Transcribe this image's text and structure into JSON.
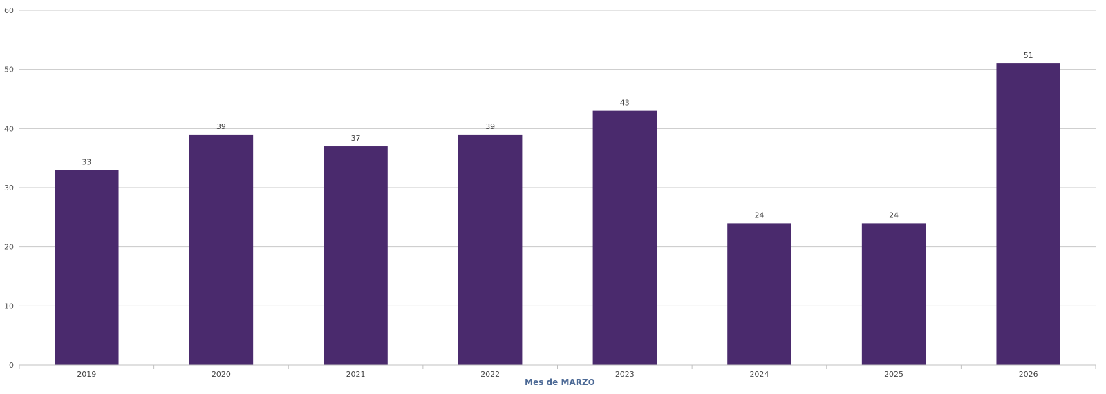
{
  "chart_data": {
    "type": "bar",
    "title": "",
    "xlabel": "Mes de MARZO",
    "ylabel": "",
    "categories": [
      "2019",
      "2020",
      "2021",
      "2022",
      "2023",
      "2024",
      "2025",
      "2026"
    ],
    "values": [
      33,
      39,
      37,
      39,
      43,
      24,
      24,
      51
    ],
    "ylim": [
      0,
      60
    ],
    "yticks": [
      0,
      10,
      20,
      30,
      40,
      50,
      60
    ],
    "grid": true,
    "data_labels": true,
    "bar_color": "#4a2a6d"
  }
}
